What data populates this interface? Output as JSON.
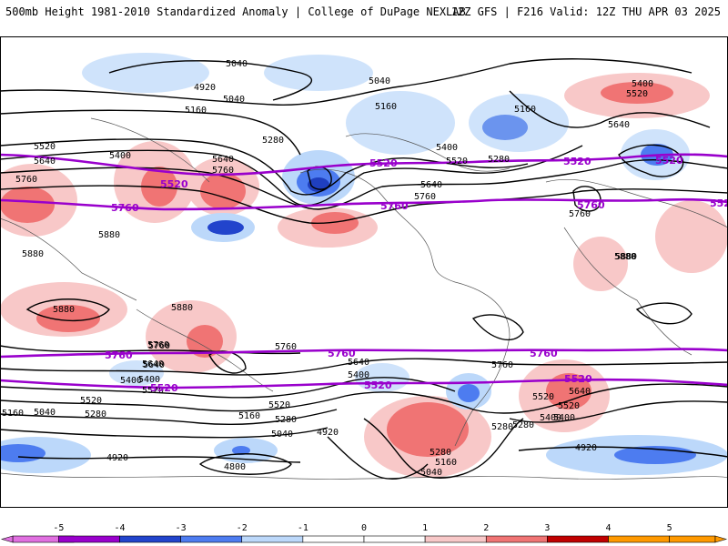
{
  "header": {
    "title_left": "500mb Height 1981-2010 Standardized Anomaly | College of DuPage NEXLAB",
    "title_right": "12Z GFS | F216 Valid: 12Z THU APR 03 2025"
  },
  "colorbar": {
    "ticks": [
      "-5",
      "-4",
      "-3",
      "-2",
      "-1",
      "0",
      "1",
      "2",
      "3",
      "4",
      "5"
    ],
    "colors": [
      "#e070e0",
      "#9900cc",
      "#2244cc",
      "#4d7cf0",
      "#bcd8fa",
      "#ffffff",
      "#ffffff",
      "#f8c8c8",
      "#f07474",
      "#c00000",
      "#ff9900"
    ]
  },
  "contour_labels": {
    "black": [
      "5040",
      "4920",
      "5040",
      "5160",
      "5040",
      "5160",
      "5160",
      "5400",
      "5520",
      "5520",
      "5640",
      "5760",
      "5640",
      "5760",
      "5280",
      "5400",
      "5400",
      "5520",
      "5640",
      "5280",
      "5760",
      "5640",
      "5760",
      "5880",
      "5880",
      "5880",
      "5880",
      "5880",
      "5760",
      "5640",
      "5400",
      "5520",
      "5280",
      "5160",
      "5040",
      "5520",
      "5280",
      "5160",
      "5040",
      "4920",
      "4920",
      "4800",
      "5760",
      "5640",
      "5400",
      "5520",
      "5400",
      "5280",
      "5160",
      "5040",
      "5280",
      "5760",
      "5640",
      "5520",
      "5400",
      "5280",
      "4920",
      "5400",
      "5520",
      "5640",
      "5760",
      "5880"
    ],
    "purple": [
      "5520",
      "5520",
      "5760",
      "5520",
      "5760",
      "5520",
      "5760",
      "5760",
      "5760",
      "5520",
      "5520",
      "5760",
      "5520",
      "5520"
    ]
  }
}
